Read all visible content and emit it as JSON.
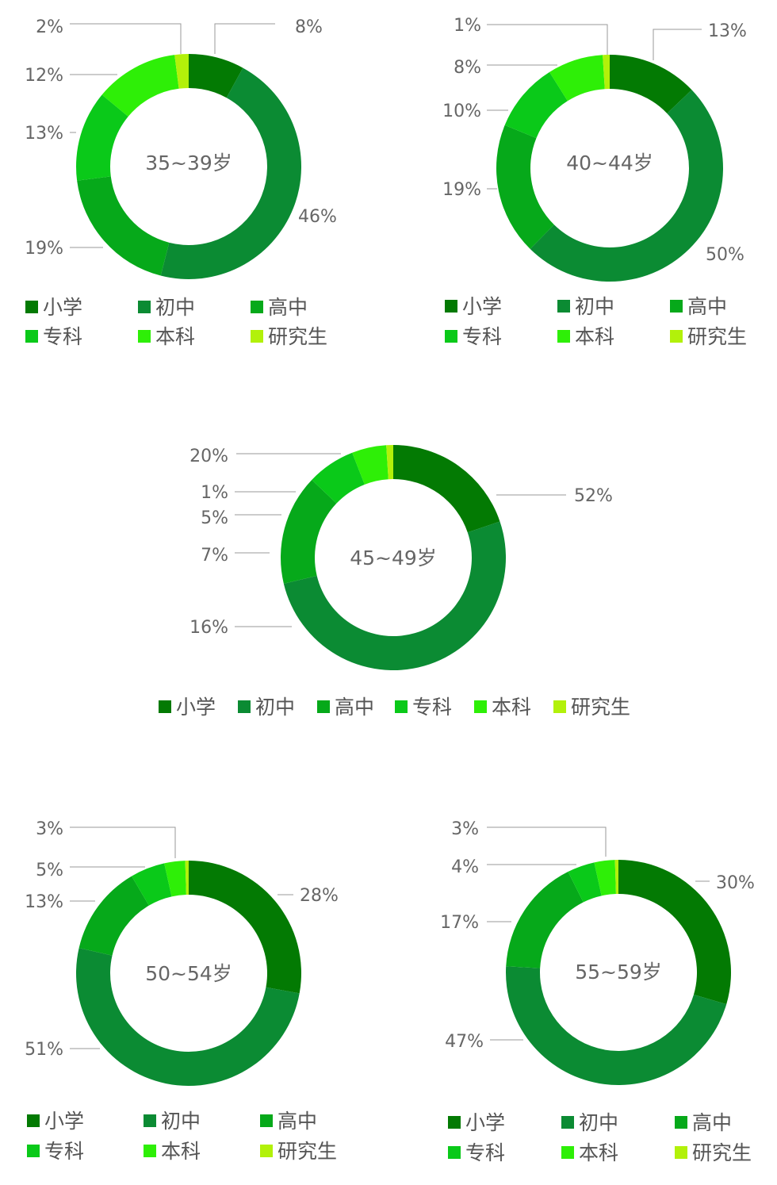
{
  "legend": {
    "labels": [
      "小学",
      "初中",
      "高中",
      "专科",
      "本科",
      "研究生"
    ],
    "colors": [
      "#037a03",
      "#0b8b33",
      "#06a91a",
      "#0ac919",
      "#2eef07",
      "#b2f10a"
    ]
  },
  "chart_data": [
    {
      "type": "pie",
      "subtype": "donut",
      "center_label": "35~39岁",
      "categories": [
        "小学",
        "初中",
        "高中",
        "专科",
        "本科",
        "研究生"
      ],
      "values": [
        8,
        46,
        19,
        13,
        12,
        2
      ],
      "labels": [
        "8%",
        "46%",
        "19%",
        "13%",
        "12%",
        "2%"
      ]
    },
    {
      "type": "pie",
      "subtype": "donut",
      "center_label": "40~44岁",
      "categories": [
        "小学",
        "初中",
        "高中",
        "专科",
        "本科",
        "研究生"
      ],
      "values": [
        13,
        50,
        19,
        10,
        8,
        1
      ],
      "labels": [
        "13%",
        "50%",
        "19%",
        "10%",
        "8%",
        "1%"
      ]
    },
    {
      "type": "pie",
      "subtype": "donut",
      "center_label": "45~49岁",
      "categories": [
        "小学",
        "初中",
        "高中",
        "专科",
        "本科",
        "研究生"
      ],
      "values": [
        20,
        52,
        16,
        7,
        5,
        1
      ],
      "labels": [
        "20%",
        "52%",
        "16%",
        "7%",
        "5%",
        "1%"
      ]
    },
    {
      "type": "pie",
      "subtype": "donut",
      "center_label": "50~54岁",
      "categories": [
        "小学",
        "初中",
        "高中",
        "专科",
        "本科",
        "研究生"
      ],
      "values": [
        28,
        51,
        13,
        5,
        3,
        0.5
      ],
      "labels": [
        "28%",
        "51%",
        "13%",
        "5%",
        "3%",
        ""
      ]
    },
    {
      "type": "pie",
      "subtype": "donut",
      "center_label": "55~59岁",
      "categories": [
        "小学",
        "初中",
        "高中",
        "专科",
        "本科",
        "研究生"
      ],
      "values": [
        30,
        47,
        17,
        4,
        3,
        0.5
      ],
      "labels": [
        "30%",
        "47%",
        "17%",
        "4%",
        "3%",
        ""
      ]
    }
  ]
}
